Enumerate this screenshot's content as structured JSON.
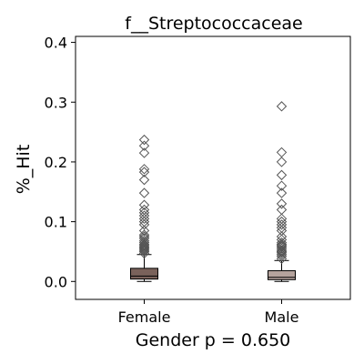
{
  "chart_data": {
    "type": "box",
    "title": "f__Streptococcaceae",
    "xlabel": "Gender p = 0.650",
    "ylabel": "%_Hit",
    "ylim": [
      -0.03,
      0.41
    ],
    "yticks": [
      0.0,
      0.1,
      0.2,
      0.3,
      0.4
    ],
    "ytick_labels": [
      "0.0",
      "0.1",
      "0.2",
      "0.3",
      "0.4"
    ],
    "categories": [
      "Female",
      "Male"
    ],
    "grid": false,
    "boxes": [
      {
        "name": "Female",
        "whisker_low": 0.0,
        "q1": 0.004,
        "median": 0.009,
        "q3": 0.022,
        "whisker_high": 0.045,
        "fill": "#7a625b",
        "outliers": [
          0.047,
          0.05,
          0.052,
          0.054,
          0.056,
          0.058,
          0.06,
          0.062,
          0.065,
          0.068,
          0.072,
          0.075,
          0.078,
          0.085,
          0.095,
          0.1,
          0.105,
          0.11,
          0.115,
          0.12,
          0.128,
          0.148,
          0.17,
          0.183,
          0.188,
          0.215,
          0.227,
          0.237
        ]
      },
      {
        "name": "Male",
        "whisker_low": 0.0,
        "q1": 0.003,
        "median": 0.007,
        "q3": 0.018,
        "whisker_high": 0.035,
        "fill": "#b5a39d",
        "outliers": [
          0.038,
          0.042,
          0.045,
          0.048,
          0.05,
          0.052,
          0.055,
          0.058,
          0.06,
          0.062,
          0.065,
          0.07,
          0.075,
          0.085,
          0.09,
          0.095,
          0.1,
          0.105,
          0.12,
          0.13,
          0.148,
          0.16,
          0.178,
          0.2,
          0.216,
          0.293
        ]
      }
    ]
  }
}
